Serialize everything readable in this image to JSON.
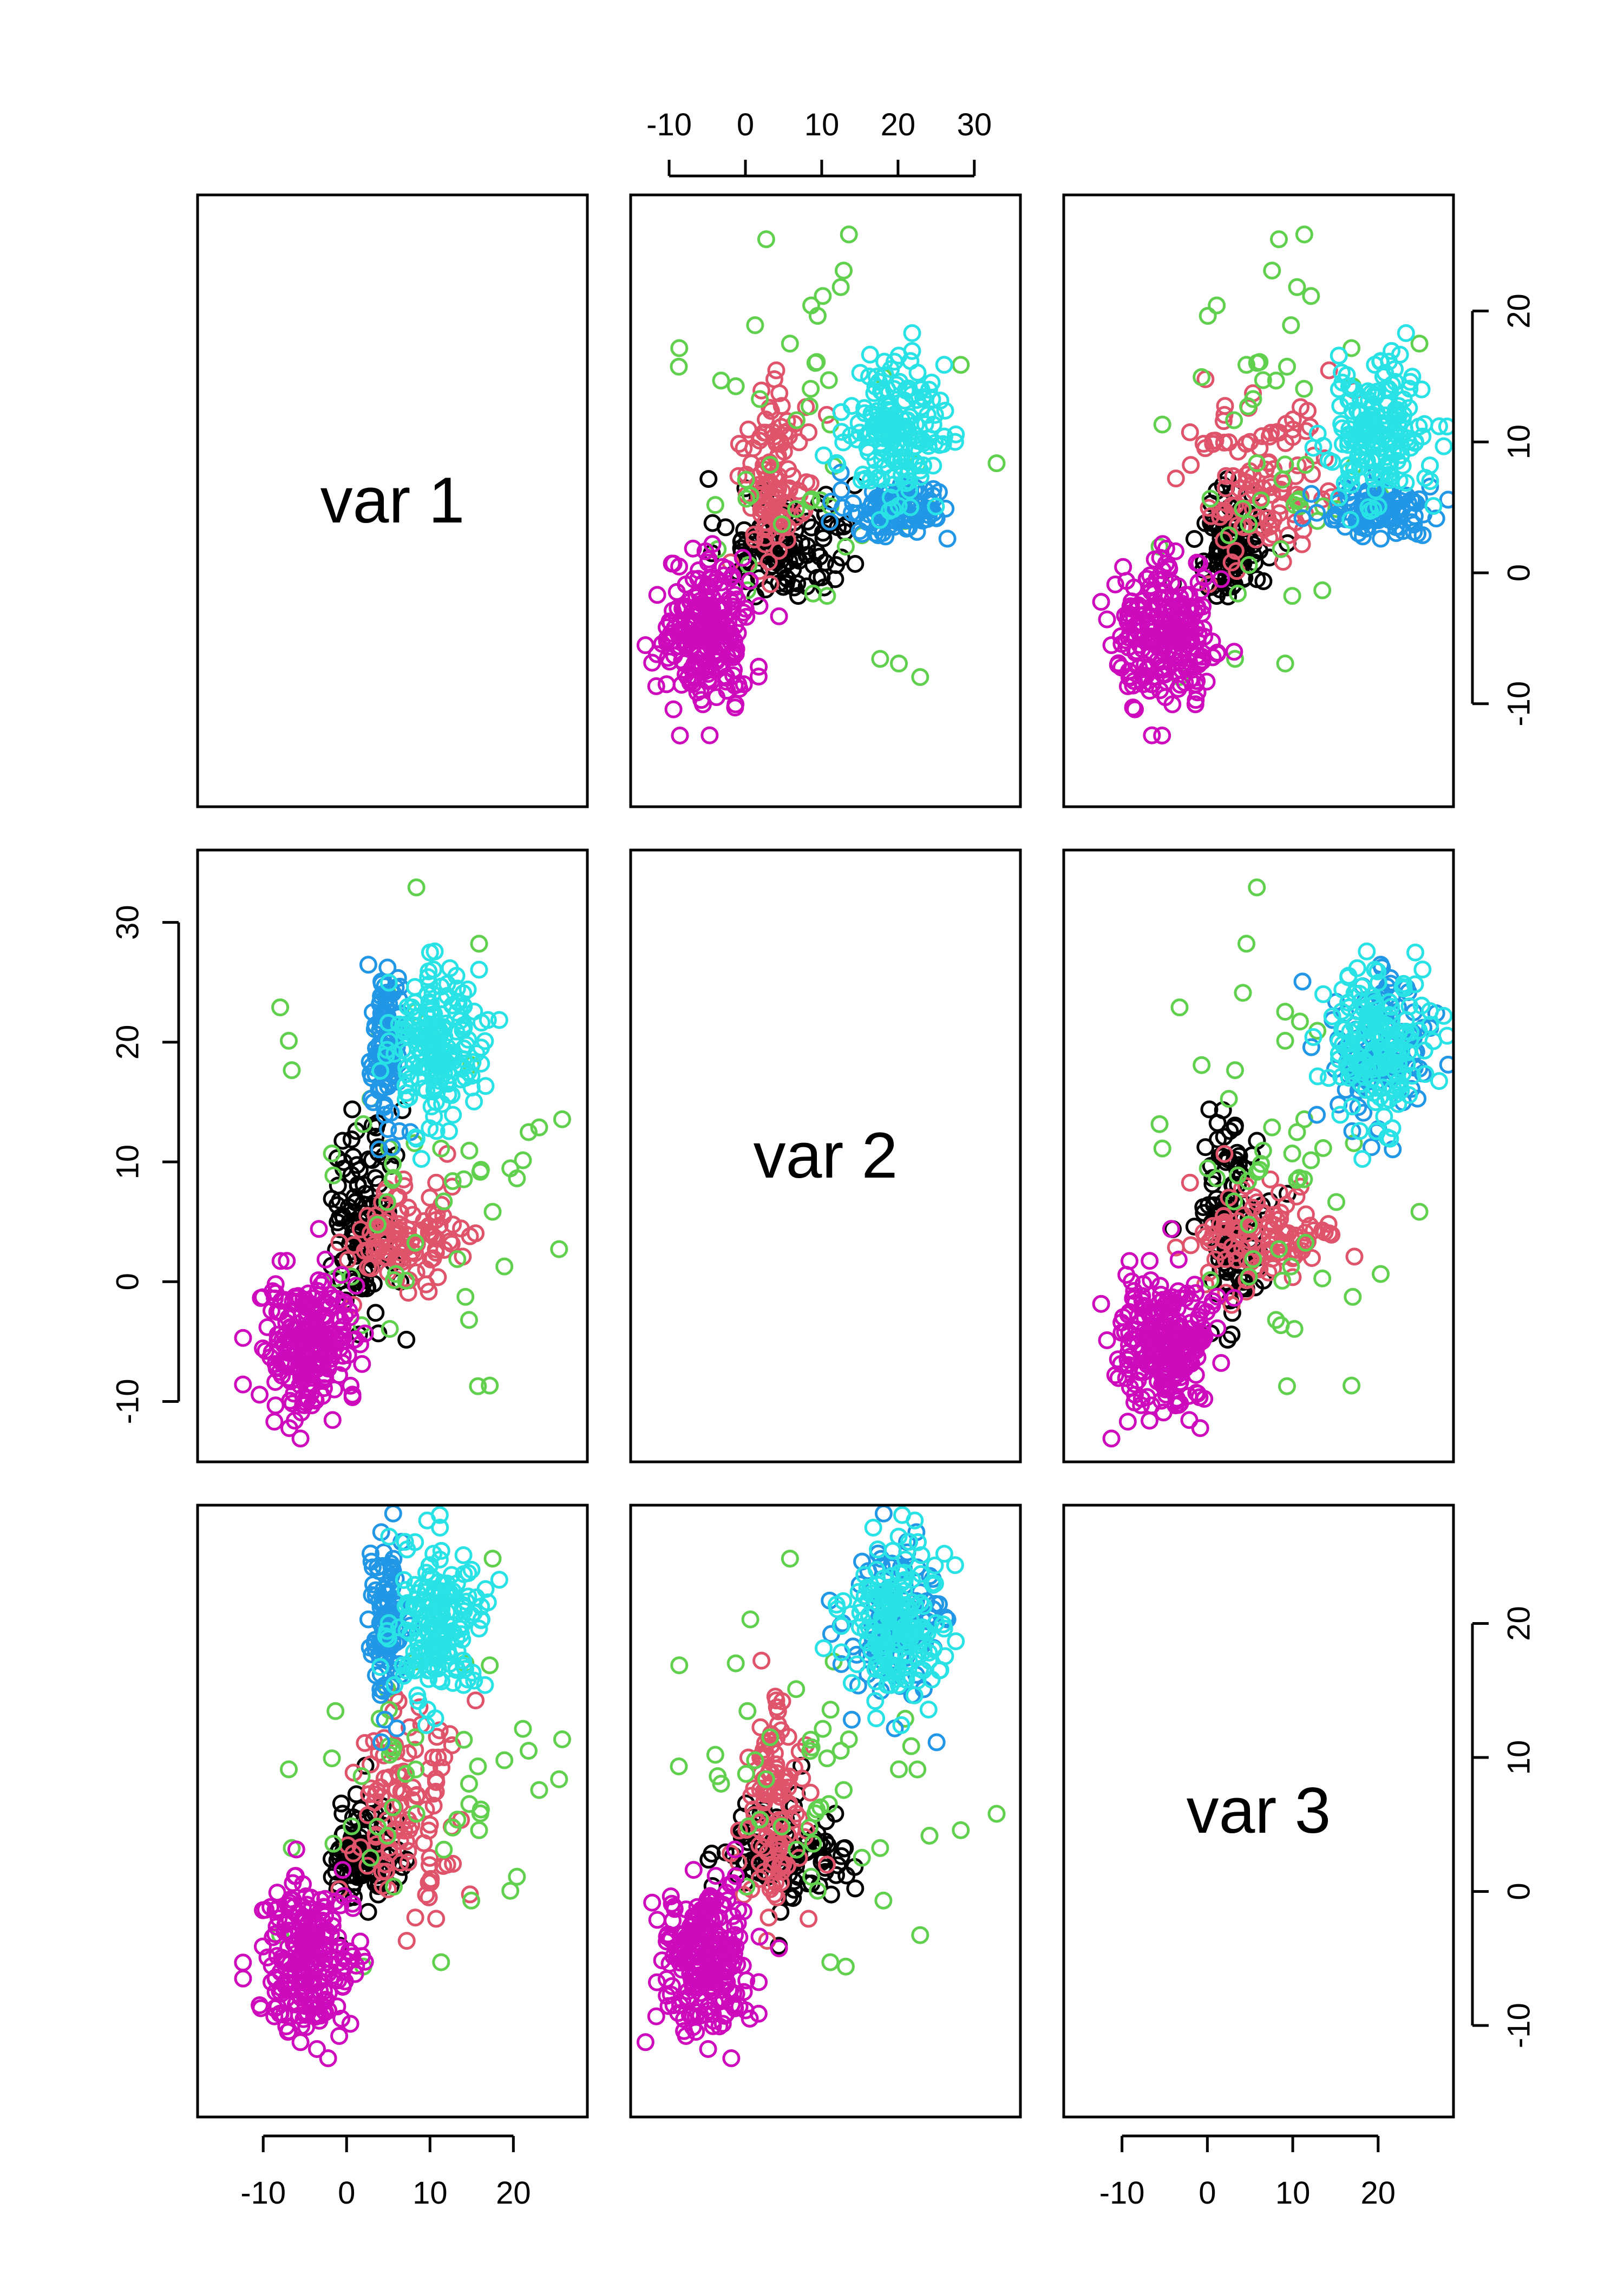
{
  "chart_data": {
    "type": "scatter",
    "subtype": "pairs-matrix",
    "variables": [
      "var 1",
      "var 2",
      "var 3"
    ],
    "ranges": {
      "var 1": [
        -16,
        27
      ],
      "var 2": [
        -13,
        34
      ],
      "var 3": [
        -15,
        27
      ]
    },
    "ticks": {
      "var 1": [
        "-10",
        "0",
        "10",
        "20"
      ],
      "var 2": [
        "-10",
        "0",
        "10",
        "20",
        "30"
      ],
      "var 3": [
        "-10",
        "0",
        "10",
        "20"
      ]
    },
    "grid": false,
    "legend": "none",
    "clusters": [
      {
        "color": "#000000",
        "count": 110,
        "center": [
          2,
          5,
          3
        ],
        "spread": [
          2.2,
          4.2,
          1.8
        ]
      },
      {
        "color": "#DF536B",
        "count": 110,
        "center": [
          7,
          4,
          6
        ],
        "spread": [
          3.2,
          2.2,
          4.2
        ]
      },
      {
        "color": "#61D04F",
        "count": 50,
        "center": [
          9,
          9,
          8
        ],
        "spread": [
          8,
          8,
          6
        ]
      },
      {
        "color": "#2297E6",
        "count": 110,
        "center": [
          4.8,
          20,
          20
        ],
        "spread": [
          0.9,
          3.2,
          3
        ]
      },
      {
        "color": "#28E2E5",
        "count": 180,
        "center": [
          11,
          20,
          20
        ],
        "spread": [
          2.6,
          3.4,
          3.2
        ]
      },
      {
        "color": "#CD0BBC",
        "count": 240,
        "center": [
          -4.5,
          -5,
          -5
        ],
        "spread": [
          2.8,
          2.8,
          2.8
        ]
      }
    ]
  }
}
